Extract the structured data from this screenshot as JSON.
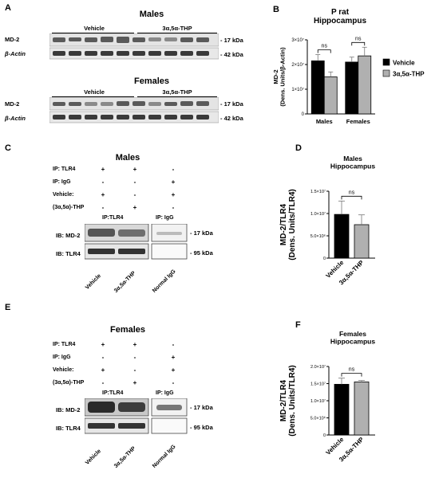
{
  "panels": {
    "A": {
      "label": "A",
      "males": {
        "title": "Males",
        "groups": [
          "Vehicle",
          "3α,5α-THP"
        ],
        "rows": [
          "MD-2",
          "β-Actin"
        ],
        "kda": [
          "- 17 kDa",
          "- 42 kDa"
        ]
      },
      "females": {
        "title": "Females",
        "groups": [
          "Vehicle",
          "3α,5α-THP"
        ],
        "rows": [
          "MD-2",
          "β-Actin"
        ],
        "kda": [
          "- 17 kDa",
          "- 42 kDa"
        ]
      }
    },
    "B": {
      "label": "B"
    },
    "C": {
      "label": "C",
      "title": "Males",
      "conditions": [
        {
          "name": "IP: TLR4",
          "signs": [
            "+",
            "+",
            "-"
          ]
        },
        {
          "name": "IP: IgG",
          "signs": [
            "-",
            "-",
            "+"
          ]
        },
        {
          "name": "Vehicle:",
          "signs": [
            "+",
            "-",
            "+"
          ]
        },
        {
          "name": "(3α,5α)-THP",
          "signs": [
            "-",
            "+",
            "-"
          ]
        }
      ],
      "ip_groups": [
        "IP:TLR4",
        "IP: IgG"
      ],
      "rows": [
        "IB: MD-2",
        "IB: TLR4"
      ],
      "kda": [
        "- 17 kDa",
        "- 95 kDa"
      ],
      "lanes": [
        "Vehicle",
        "3α,5α-THP",
        "Normal IgG"
      ]
    },
    "D": {
      "label": "D"
    },
    "E": {
      "label": "E",
      "title": "Females",
      "conditions": [
        {
          "name": "IP: TLR4",
          "signs": [
            "+",
            "+",
            "-"
          ]
        },
        {
          "name": "IP: IgG",
          "signs": [
            "-",
            "-",
            "+"
          ]
        },
        {
          "name": "Vehicle:",
          "signs": [
            "+",
            "-",
            "+"
          ]
        },
        {
          "name": "(3α,5α)-THP",
          "signs": [
            "-",
            "+",
            "-"
          ]
        }
      ],
      "ip_groups": [
        "IP:TLR4",
        "IP: IgG"
      ],
      "rows": [
        "IB: MD-2",
        "IB: TLR4"
      ],
      "kda": [
        "- 17 kDa",
        "- 95 kDa"
      ],
      "lanes": [
        "Vehicle",
        "3α,5α-THP",
        "Normal IgG"
      ]
    },
    "F": {
      "label": "F"
    }
  },
  "chart_data": [
    {
      "panel": "B",
      "type": "bar",
      "title": "P rat\nHippocampus",
      "ylabel": "MD-2\n(Dens. Units/β-Actin)",
      "categories": [
        "Males",
        "Females"
      ],
      "series": [
        {
          "name": "Vehicle",
          "color": "#000000",
          "values": [
            21500000,
            21000000
          ],
          "errors": [
            2500000,
            2000000
          ]
        },
        {
          "name": "3α,5α-THP",
          "color": "#b0b0b0",
          "values": [
            15000000,
            23500000
          ],
          "errors": [
            2000000,
            3500000
          ]
        }
      ],
      "ylim": [
        0,
        30000000
      ],
      "yticks": [
        0,
        10000000,
        20000000,
        30000000
      ],
      "ytick_labels": [
        "0",
        "1×10⁷",
        "2×10⁷",
        "3×10⁷"
      ],
      "annotations": [
        "ns",
        "ns"
      ],
      "legend": "right"
    },
    {
      "panel": "D",
      "type": "bar",
      "title": "Males\nHippocampus",
      "ylabel": "MD-2/TLR4\n(Dens. Units/TLR4)",
      "categories": [
        "Vehicle",
        "3α,5α-THP"
      ],
      "values": [
        9800000,
        7500000
      ],
      "errors": [
        3000000,
        2200000
      ],
      "colors": [
        "#000000",
        "#b0b0b0"
      ],
      "ylim": [
        0,
        15000000
      ],
      "yticks": [
        0,
        5000000,
        10000000,
        15000000
      ],
      "ytick_labels": [
        "0",
        "5.0×10⁶",
        "1.0×10⁷",
        "1.5×10⁷"
      ],
      "annotations": [
        "ns"
      ]
    },
    {
      "panel": "F",
      "type": "bar",
      "title": "Females\nHippocampus",
      "ylabel": "MD-2/TLR4\n(Dens. Units/TLR4)",
      "categories": [
        "Vehicle",
        "3α,5α-THP"
      ],
      "values": [
        14800000,
        15500000
      ],
      "errors": [
        1800000,
        400000
      ],
      "colors": [
        "#000000",
        "#b0b0b0"
      ],
      "ylim": [
        0,
        20000000
      ],
      "yticks": [
        0,
        5000000,
        10000000,
        15000000,
        20000000
      ],
      "ytick_labels": [
        "0",
        "5.0×10⁶",
        "1.0×10⁷",
        "1.5×10⁷",
        "2.0×10⁷"
      ],
      "annotations": [
        "ns"
      ]
    }
  ]
}
